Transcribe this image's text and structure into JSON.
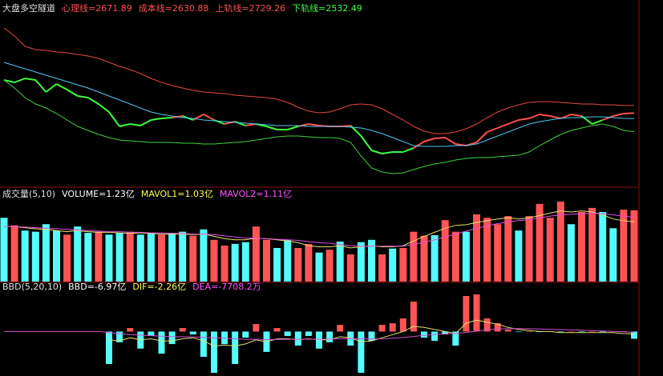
{
  "chart_data": [
    {
      "type": "line",
      "title": "大盘多空隧道",
      "ylim": [
        2128,
        3400
      ],
      "series": [
        {
          "name": "心理线=2671.89",
          "color": "#ff5050",
          "below_color": "#3cff3c",
          "legend_color": "#ff5050",
          "values": [
            2920,
            2902,
            2932,
            2920,
            2830,
            2890,
            2848,
            2800,
            2788,
            2740,
            2680,
            2572,
            2590,
            2578,
            2620,
            2632,
            2638,
            2650,
            2620,
            2662,
            2620,
            2590,
            2608,
            2578,
            2590,
            2572,
            2548,
            2548,
            2572,
            2590,
            2578,
            2572,
            2572,
            2578,
            2500,
            2392,
            2368,
            2380,
            2380,
            2410,
            2458,
            2482,
            2488,
            2440,
            2428,
            2452,
            2530,
            2560,
            2590,
            2620,
            2632,
            2662,
            2650,
            2632,
            2662,
            2650,
            2590,
            2620,
            2650,
            2668,
            2671.89
          ]
        },
        {
          "name": "成本线=2630.88",
          "color": "#50c8f0",
          "legend_color": "#ff5050",
          "values": [
            3052,
            3028,
            3004,
            2980,
            2956,
            2932,
            2908,
            2884,
            2860,
            2830,
            2800,
            2770,
            2740,
            2710,
            2680,
            2662,
            2650,
            2638,
            2632,
            2620,
            2614,
            2608,
            2602,
            2596,
            2590,
            2584,
            2578,
            2578,
            2578,
            2572,
            2572,
            2572,
            2572,
            2566,
            2560,
            2542,
            2518,
            2488,
            2458,
            2428,
            2422,
            2422,
            2422,
            2428,
            2428,
            2440,
            2470,
            2500,
            2530,
            2560,
            2590,
            2608,
            2620,
            2632,
            2638,
            2638,
            2644,
            2644,
            2638,
            2632,
            2630.88
          ]
        },
        {
          "name": "上轨线=2729.26",
          "color": "#e04848",
          "legend_color": "#ff5050",
          "values": [
            3310,
            3250,
            3172,
            3148,
            3142,
            3130,
            3124,
            3112,
            3100,
            3082,
            3052,
            3022,
            2998,
            2968,
            2932,
            2902,
            2878,
            2860,
            2842,
            2830,
            2824,
            2818,
            2806,
            2800,
            2794,
            2788,
            2776,
            2752,
            2716,
            2686,
            2674,
            2680,
            2704,
            2734,
            2740,
            2734,
            2704,
            2662,
            2620,
            2572,
            2536,
            2518,
            2518,
            2530,
            2554,
            2590,
            2638,
            2680,
            2710,
            2734,
            2752,
            2758,
            2758,
            2752,
            2746,
            2740,
            2740,
            2734,
            2734,
            2728,
            2729.26
          ]
        },
        {
          "name": "下轨线=2532.49",
          "color": "#3cd23c",
          "legend_color": "#3cff3c",
          "values": [
            2920,
            2860,
            2788,
            2740,
            2710,
            2668,
            2620,
            2572,
            2542,
            2512,
            2488,
            2470,
            2464,
            2458,
            2452,
            2452,
            2452,
            2446,
            2446,
            2440,
            2440,
            2446,
            2452,
            2458,
            2470,
            2482,
            2494,
            2500,
            2500,
            2494,
            2488,
            2488,
            2482,
            2452,
            2350,
            2260,
            2230,
            2218,
            2224,
            2248,
            2272,
            2290,
            2302,
            2320,
            2332,
            2338,
            2338,
            2344,
            2350,
            2356,
            2380,
            2428,
            2470,
            2512,
            2542,
            2560,
            2578,
            2590,
            2572,
            2542,
            2532.49
          ]
        }
      ]
    },
    {
      "type": "bar",
      "title": "成交量(5,10)",
      "ylim": [
        0,
        1.6
      ],
      "series": [
        {
          "name": "VOLUME=1.23亿",
          "type": "bar",
          "legend_color": "#ffffff",
          "values": [
            1.1,
            0.97,
            0.88,
            0.86,
            0.99,
            0.88,
            0.81,
            0.95,
            0.84,
            0.86,
            0.81,
            0.84,
            0.86,
            0.81,
            0.83,
            0.81,
            0.84,
            0.86,
            0.79,
            0.9,
            0.72,
            0.62,
            0.65,
            0.68,
            0.95,
            0.72,
            0.58,
            0.72,
            0.58,
            0.65,
            0.5,
            0.55,
            0.69,
            0.47,
            0.68,
            0.72,
            0.47,
            0.57,
            0.58,
            0.86,
            0.79,
            0.8,
            1.06,
            0.86,
            0.86,
            1.16,
            1.1,
            0.99,
            1.13,
            0.88,
            1.13,
            1.34,
            1.1,
            1.38,
            0.99,
            1.2,
            1.27,
            1.2,
            0.92,
            1.24,
            1.23
          ],
          "colors": [
            "#54fcfc",
            "#ff5454",
            "#54fcfc",
            "#54fcfc",
            "#54fcfc",
            "#54fcfc",
            "#ff5454",
            "#54fcfc",
            "#54fcfc",
            "#ff5454",
            "#54fcfc",
            "#54fcfc",
            "#ff5454",
            "#54fcfc",
            "#54fcfc",
            "#ff5454",
            "#54fcfc",
            "#54fcfc",
            "#ff5454",
            "#54fcfc",
            "#ff5454",
            "#ff5454",
            "#54fcfc",
            "#54fcfc",
            "#ff5454",
            "#ff5454",
            "#54fcfc",
            "#54fcfc",
            "#ff5454",
            "#ff5454",
            "#54fcfc",
            "#ff5454",
            "#54fcfc",
            "#ff5454",
            "#54fcfc",
            "#54fcfc",
            "#ff5454",
            "#54fcfc",
            "#ff5454",
            "#ff5454",
            "#ff5454",
            "#54fcfc",
            "#ff5454",
            "#ff5454",
            "#54fcfc",
            "#ff5454",
            "#ff5454",
            "#ff5454",
            "#ff5454",
            "#54fcfc",
            "#ff5454",
            "#ff5454",
            "#ff5454",
            "#ff5454",
            "#54fcfc",
            "#ff5454",
            "#ff5454",
            "#54fcfc",
            "#54fcfc",
            "#ff5454",
            "#ff5454"
          ]
        },
        {
          "name": "MAVOL1=1.03亿",
          "type": "line",
          "color": "#e8e070",
          "legend_color": "#ffff54",
          "values": [
            0.95,
            0.95,
            0.93,
            0.91,
            0.9,
            0.88,
            0.86,
            0.88,
            0.86,
            0.85,
            0.85,
            0.84,
            0.83,
            0.84,
            0.83,
            0.82,
            0.82,
            0.82,
            0.81,
            0.82,
            0.78,
            0.74,
            0.72,
            0.72,
            0.75,
            0.74,
            0.72,
            0.7,
            0.67,
            0.62,
            0.6,
            0.6,
            0.62,
            0.58,
            0.6,
            0.62,
            0.6,
            0.6,
            0.62,
            0.7,
            0.78,
            0.85,
            0.92,
            0.97,
            0.98,
            1.02,
            1.05,
            1.08,
            1.1,
            1.08,
            1.1,
            1.14,
            1.18,
            1.22,
            1.2,
            1.22,
            1.2,
            1.15,
            1.08,
            1.05,
            1.03
          ]
        },
        {
          "name": "MAVOL2=1.11亿",
          "type": "line",
          "color": "#e050e0",
          "legend_color": "#ff54ff",
          "values": [
            0.95,
            0.95,
            0.94,
            0.93,
            0.92,
            0.91,
            0.9,
            0.89,
            0.88,
            0.87,
            0.86,
            0.86,
            0.85,
            0.85,
            0.84,
            0.84,
            0.83,
            0.83,
            0.82,
            0.82,
            0.81,
            0.79,
            0.77,
            0.75,
            0.75,
            0.74,
            0.73,
            0.72,
            0.71,
            0.69,
            0.67,
            0.66,
            0.64,
            0.62,
            0.61,
            0.61,
            0.61,
            0.61,
            0.61,
            0.64,
            0.68,
            0.72,
            0.77,
            0.82,
            0.87,
            0.92,
            0.96,
            1.0,
            1.03,
            1.05,
            1.07,
            1.1,
            1.13,
            1.15,
            1.16,
            1.17,
            1.18,
            1.17,
            1.15,
            1.13,
            1.11
          ]
        }
      ]
    },
    {
      "type": "bar",
      "title": "BBD(5,20,10)",
      "ylim": [
        -43,
        46
      ],
      "series": [
        {
          "name": "BBD=-6.97亿",
          "type": "bar",
          "legend_color": "#ffffff",
          "up_color": "#ff5454",
          "down_color": "#54fcfc",
          "values": [
            null,
            null,
            null,
            null,
            null,
            null,
            null,
            null,
            null,
            null,
            -31.4,
            -10.4,
            3.4,
            -16.5,
            -4.3,
            -21.4,
            -12.1,
            3.4,
            -2.8,
            -24.5,
            -39.9,
            -12.1,
            -31.4,
            -5.9,
            7.3,
            -19.7,
            3.4,
            -4.3,
            -13.6,
            -4.3,
            -16.5,
            -10.4,
            6.5,
            -13.6,
            -39.9,
            -9.0,
            6.5,
            8.0,
            12.7,
            29.0,
            -5.9,
            -9.0,
            -2.8,
            -13.6,
            34.4,
            36.0,
            12.7,
            8.0,
            1.9,
            -0.5,
            0.3,
            -0.5,
            0.3,
            -0.5,
            0.3,
            -0.5,
            0.3,
            -0.5,
            0.3,
            0.3,
            -6.97
          ]
        },
        {
          "name": "DIF=-2.26亿",
          "type": "line",
          "color": "#e8e070",
          "legend_color": "#ffff54",
          "values": [
            null,
            null,
            null,
            null,
            null,
            null,
            null,
            null,
            null,
            null,
            -8,
            -9,
            -6,
            -8,
            -7,
            -9,
            -9,
            -7,
            -6,
            -9,
            -14,
            -13,
            -14,
            -12,
            -8,
            -10,
            -7,
            -7,
            -8,
            -7,
            -8,
            -8,
            -5,
            -6,
            -10,
            -9,
            -6,
            -3,
            0,
            5,
            4,
            2,
            0,
            -2,
            8,
            11,
            9,
            7,
            4,
            2,
            1,
            0,
            0,
            -1,
            -1,
            -1,
            -1,
            -1,
            -1,
            -2,
            -2.26
          ]
        },
        {
          "name": "DEA=-7708.2万",
          "type": "line",
          "color": "#d050d0",
          "legend_color": "#ff54ff",
          "values": [
            0,
            0,
            0,
            0,
            0,
            0,
            0,
            0,
            0,
            0,
            -1,
            -2,
            -3,
            -3.5,
            -4,
            -4.5,
            -5,
            -5,
            -5.2,
            -5.5,
            -6,
            -6.5,
            -7,
            -7.5,
            -7.5,
            -7.8,
            -7.6,
            -7.5,
            -7.5,
            -7.4,
            -7.4,
            -7.3,
            -7,
            -6.8,
            -7,
            -7.2,
            -7,
            -6.5,
            -5.8,
            -4.7,
            -3.7,
            -2.8,
            -2.1,
            -1.8,
            -0.9,
            0.5,
            1.6,
            2.5,
            2.9,
            2.9,
            2.7,
            2.4,
            2.2,
            1.9,
            1.6,
            1.3,
            0.9,
            0.5,
            0.1,
            -0.3,
            -0.77
          ]
        }
      ]
    }
  ]
}
